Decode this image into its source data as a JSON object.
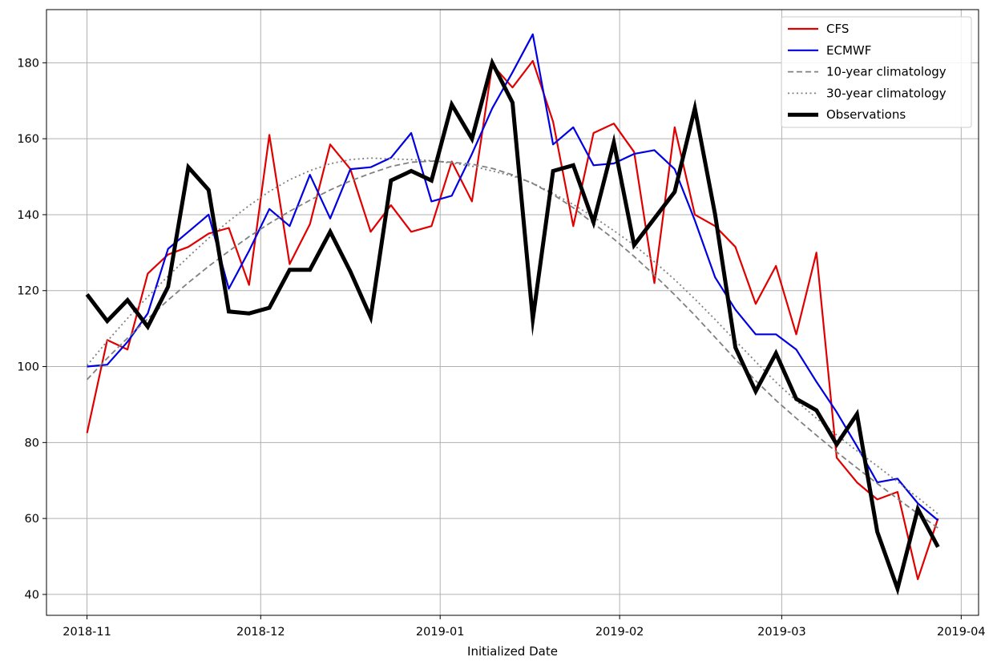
{
  "chart_data": {
    "type": "line",
    "xlabel": "Initialized Date",
    "ylabel": "",
    "x_tick_labels": [
      "2018-11",
      "2018-12",
      "2019-01",
      "2019-02",
      "2019-03",
      "2019-04"
    ],
    "y_ticks": [
      40,
      60,
      80,
      100,
      120,
      140,
      160,
      180
    ],
    "ylim": [
      34.5,
      194
    ],
    "grid": true,
    "legend_position": "top-right",
    "series": [
      {
        "name": "CFS",
        "color": "#e00000",
        "style": "solid",
        "values": [
          82.5,
          107,
          104.5,
          124.5,
          129.5,
          131.5,
          135,
          136.5,
          121.5,
          161,
          127,
          137.5,
          158.5,
          152,
          135.5,
          142.5,
          135.5,
          137,
          154,
          143.5,
          179.5,
          173.5,
          180.5,
          164.5,
          137,
          161.5,
          164,
          156.5,
          122,
          163,
          140,
          137,
          131.5,
          116.5,
          126.5,
          108.5,
          130,
          76,
          69.5,
          65,
          67,
          44,
          60
        ]
      },
      {
        "name": "ECMWF",
        "color": "#0000e0",
        "style": "solid",
        "values": [
          100,
          100.5,
          106.5,
          114,
          131,
          135.5,
          140,
          120.5,
          130.5,
          141.5,
          137,
          150.5,
          139,
          152,
          152.5,
          155,
          161.5,
          143.5,
          145,
          156,
          168,
          177.5,
          187.5,
          158.5,
          163,
          153,
          153.5,
          156,
          157,
          152,
          138.5,
          123.5,
          115,
          108.5,
          108.5,
          104.5,
          96,
          88,
          79,
          69.5,
          70.5,
          64,
          59.5
        ]
      },
      {
        "name": "10-year climatology",
        "color": "#808080",
        "style": "dashed",
        "values": [
          96.6,
          102.2,
          107.5,
          112.6,
          117.5,
          122.1,
          126.4,
          130.4,
          134.2,
          137.7,
          140.9,
          143.8,
          146.5,
          148.9,
          150.9,
          152.7,
          153.8,
          154.1,
          153.8,
          153.3,
          152.2,
          150.5,
          148.2,
          145.3,
          141.8,
          137.7,
          133.6,
          129,
          124.1,
          118.9,
          113.5,
          107.7,
          101.9,
          96.3,
          91.1,
          86.4,
          81.9,
          77.5,
          73.3,
          69.2,
          65.2,
          61.3,
          57.5
        ]
      },
      {
        "name": "30-year climatology",
        "color": "#808080",
        "style": "dotted",
        "values": [
          100.3,
          106.7,
          112.7,
          118.4,
          123.8,
          128.9,
          133.8,
          138.3,
          142.4,
          146.1,
          149.2,
          151.6,
          153.4,
          154.5,
          154.9,
          154.7,
          154.5,
          154.2,
          153.6,
          152.8,
          151.5,
          150.2,
          148.3,
          145.6,
          142.7,
          139.4,
          135.8,
          132,
          127.6,
          122.9,
          117.8,
          112.4,
          106.8,
          101.3,
          95.9,
          91,
          86.4,
          82,
          77.8,
          73.8,
          69.7,
          65.5,
          61.2
        ]
      },
      {
        "name": "Observations",
        "color": "#000000",
        "style": "thick",
        "values": [
          119,
          112,
          117.5,
          110.5,
          121,
          152.5,
          146.5,
          114.5,
          114,
          115.5,
          125.5,
          125.5,
          135.5,
          125,
          113,
          149,
          151.5,
          149,
          169,
          160,
          180,
          169.5,
          112.5,
          151.5,
          153,
          138,
          159,
          132,
          139,
          146,
          168,
          140,
          105,
          93.5,
          103.5,
          91.5,
          88.5,
          79.5,
          87.5,
          56.5,
          41.5,
          62.5,
          52.5
        ]
      }
    ]
  }
}
